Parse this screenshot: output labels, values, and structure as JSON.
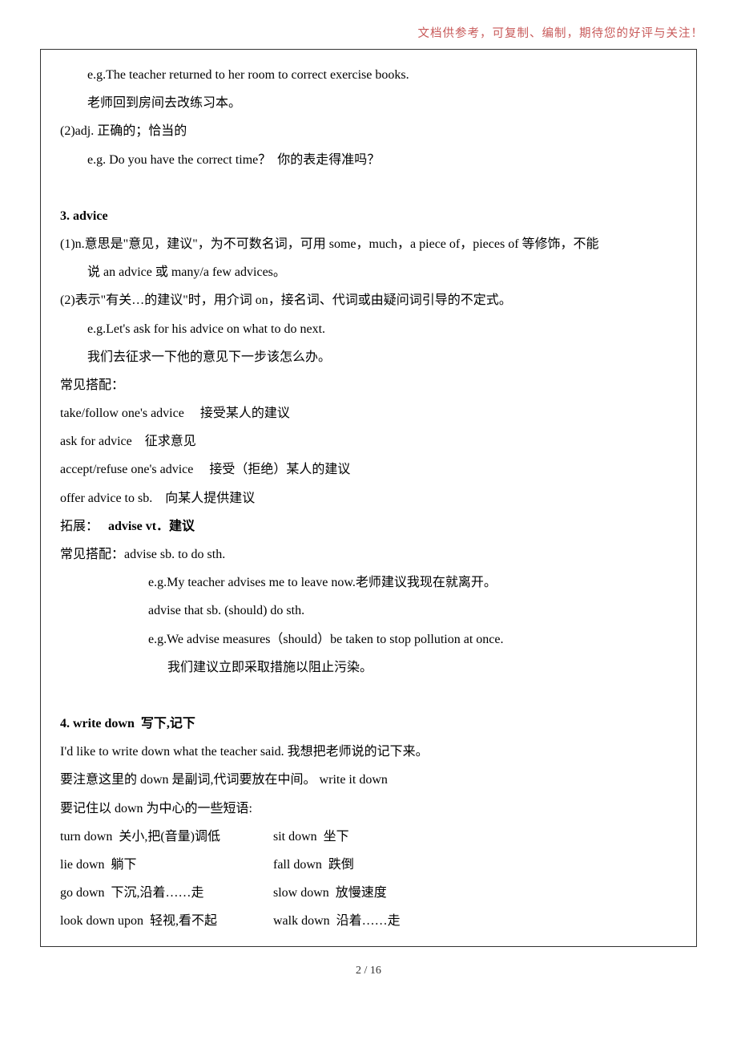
{
  "topNote": "文档供参考，可复制、编制，期待您的好评与关注！",
  "footer": "2 / 16",
  "lines": {
    "l1": "e.g.The teacher returned to her room to correct exercise books.",
    "l2": "老师回到房间去改练习本。",
    "l3": "(2)adj. 正确的；恰当的",
    "l4": "e.g. Do you have the correct time？  你的表走得准吗？",
    "l5": "3. advice",
    "l6": "(1)n.意思是\"意见，建议\"，为不可数名词，可用 some，much，a piece of，pieces of 等修饰，不能",
    "l7": "说 an advice 或 many/a few advices。",
    "l8": "(2)表示\"有关…的建议\"时，用介词 on，接名词、代词或由疑问词引导的不定式。",
    "l9": "e.g.Let's ask for his advice on what to do next.",
    "l10": "我们去征求一下他的意见下一步该怎么办。",
    "l11": "常见搭配：",
    "l12": "take/follow one's advice     接受某人的建议",
    "l13": "ask for advice    征求意见",
    "l14": "accept/refuse one's advice     接受（拒绝）某人的建议",
    "l15": "offer advice to sb.    向某人提供建议",
    "l16a": "拓展：   ",
    "l16b": "advise vt．建议",
    "l17": "常见搭配：advise sb. to do sth.",
    "l18": "e.g.My teacher advises me to leave now.老师建议我现在就离开。",
    "l19": "advise that sb. (should) do sth.",
    "l20": "e.g.We advise measures（should）be taken to stop pollution at once.",
    "l21": "我们建议立即采取措施以阻止污染。",
    "l22": "4. write down  写下,记下",
    "l23": "I'd like to write down what the teacher said. 我想把老师说的记下来。",
    "l24": "要注意这里的 down 是副词,代词要放在中间。 write it down",
    "l25": "要记住以 down 为中心的一些短语:",
    "l26a": "turn down  关小,把(音量)调低",
    "l26b": "sit down  坐下",
    "l27a": "lie down  躺下",
    "l27b": "fall down  跌倒",
    "l28a": "go down  下沉,沿着……走",
    "l28b": "slow down  放慢速度",
    "l29a": "look down upon  轻视,看不起",
    "l29b": "walk down  沿着……走"
  }
}
